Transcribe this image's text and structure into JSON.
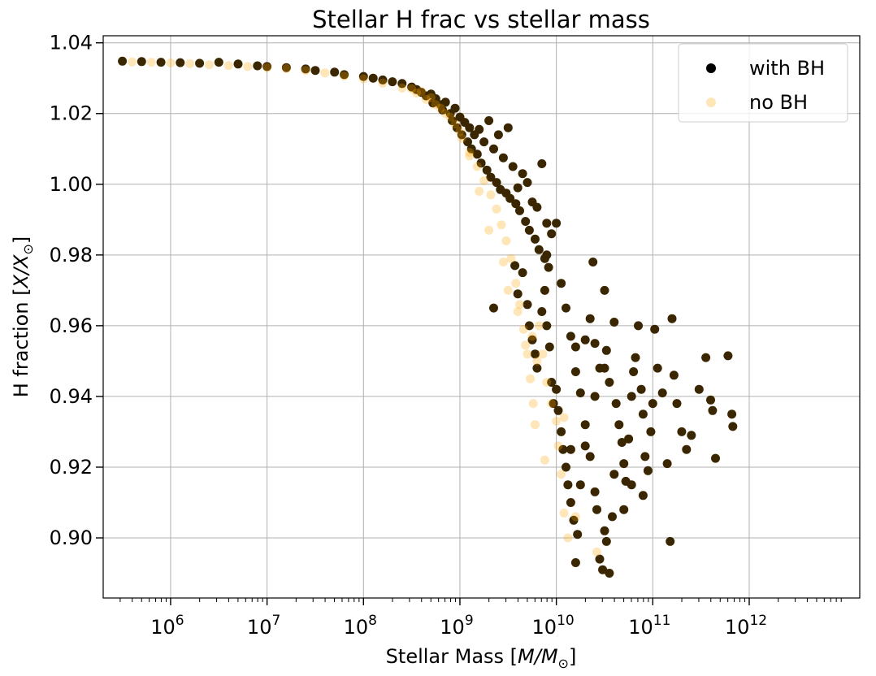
{
  "chart_data": {
    "type": "scatter",
    "title": "Stellar H frac vs stellar mass",
    "xlabel": {
      "text": "Stellar Mass [",
      "math": "M/M",
      "sub": "⊙",
      "end": "]"
    },
    "ylabel": {
      "text": "H fraction [",
      "math": "X/X",
      "sub": "⊙",
      "end": "]"
    },
    "xscale": "log",
    "xlim": [
      200000,
      14000000000000
    ],
    "ylim": [
      0.883,
      1.042
    ],
    "grid": true,
    "legend_position": "top-right",
    "x_ticks": [
      {
        "value": 1000000,
        "base": "10",
        "exp": "6"
      },
      {
        "value": 10000000,
        "base": "10",
        "exp": "7"
      },
      {
        "value": 100000000,
        "base": "10",
        "exp": "8"
      },
      {
        "value": 1000000000,
        "base": "10",
        "exp": "9"
      },
      {
        "value": 10000000000,
        "base": "10",
        "exp": "10"
      },
      {
        "value": 100000000000,
        "base": "10",
        "exp": "11"
      },
      {
        "value": 1000000000000,
        "base": "10",
        "exp": "12"
      }
    ],
    "y_ticks": [
      {
        "value": 0.9,
        "label": "0.90"
      },
      {
        "value": 0.92,
        "label": "0.92"
      },
      {
        "value": 0.94,
        "label": "0.94"
      },
      {
        "value": 0.96,
        "label": "0.96"
      },
      {
        "value": 0.98,
        "label": "0.98"
      },
      {
        "value": 1.0,
        "label": "1.00"
      },
      {
        "value": 1.02,
        "label": "1.02"
      },
      {
        "value": 1.04,
        "label": "1.04"
      }
    ],
    "series": [
      {
        "name": "with BH",
        "color": "#000000",
        "alpha": 1.0,
        "points": [
          [
            5.5,
            1.0348
          ],
          [
            5.7,
            1.0347
          ],
          [
            5.9,
            1.0345
          ],
          [
            6.1,
            1.0344
          ],
          [
            6.3,
            1.0342
          ],
          [
            6.5,
            1.0345
          ],
          [
            6.7,
            1.034
          ],
          [
            6.9,
            1.0335
          ],
          [
            7.0,
            1.0333
          ],
          [
            7.2,
            1.033
          ],
          [
            7.4,
            1.0326
          ],
          [
            7.5,
            1.0322
          ],
          [
            7.7,
            1.0317
          ],
          [
            7.8,
            1.031
          ],
          [
            8.0,
            1.0305
          ],
          [
            8.1,
            1.03
          ],
          [
            8.2,
            1.0295
          ],
          [
            8.3,
            1.029
          ],
          [
            8.4,
            1.0285
          ],
          [
            8.5,
            1.0275
          ],
          [
            8.55,
            1.0268
          ],
          [
            8.6,
            1.026
          ],
          [
            8.65,
            1.025
          ],
          [
            8.7,
            1.0255
          ],
          [
            8.72,
            1.023
          ],
          [
            8.75,
            1.0242
          ],
          [
            8.8,
            1.0225
          ],
          [
            8.82,
            1.021
          ],
          [
            8.85,
            1.0232
          ],
          [
            8.9,
            1.02
          ],
          [
            8.92,
            1.018
          ],
          [
            8.95,
            1.0215
          ],
          [
            8.97,
            1.016
          ],
          [
            9.0,
            1.019
          ],
          [
            9.02,
            1.014
          ],
          [
            9.05,
            1.0175
          ],
          [
            9.08,
            1.012
          ],
          [
            9.1,
            1.016
          ],
          [
            9.12,
            1.01
          ],
          [
            9.15,
            1.014
          ],
          [
            9.18,
            1.0085
          ],
          [
            9.2,
            1.0155
          ],
          [
            9.22,
            1.006
          ],
          [
            9.25,
            1.012
          ],
          [
            9.28,
            1.004
          ],
          [
            9.3,
            1.018
          ],
          [
            9.32,
            1.002
          ],
          [
            9.35,
            1.01
          ],
          [
            9.38,
            1.0005
          ],
          [
            9.4,
            1.014
          ],
          [
            9.42,
            0.9985
          ],
          [
            9.45,
            1.0075
          ],
          [
            9.48,
            0.9975
          ],
          [
            9.5,
            1.016
          ],
          [
            9.52,
            0.996
          ],
          [
            9.55,
            1.005
          ],
          [
            9.58,
            0.9945
          ],
          [
            9.6,
            0.999
          ],
          [
            9.62,
            0.9925
          ],
          [
            9.65,
            1.003
          ],
          [
            9.68,
            0.9895
          ],
          [
            9.7,
            1.0005
          ],
          [
            9.72,
            0.987
          ],
          [
            9.75,
            0.995
          ],
          [
            9.78,
            0.9845
          ],
          [
            9.8,
            0.9935
          ],
          [
            9.82,
            0.9815
          ],
          [
            9.85,
            1.0058
          ],
          [
            9.88,
            0.979
          ],
          [
            9.9,
            0.989
          ],
          [
            9.92,
            0.9765
          ],
          [
            9.95,
            0.986
          ],
          [
            9.57,
            0.977
          ],
          [
            9.6,
            0.969
          ],
          [
            9.65,
            0.975
          ],
          [
            9.7,
            0.966
          ],
          [
            9.72,
            0.96
          ],
          [
            9.75,
            0.956
          ],
          [
            9.78,
            0.952
          ],
          [
            9.8,
            0.948
          ],
          [
            9.85,
            0.964
          ],
          [
            9.88,
            0.97
          ],
          [
            9.9,
            0.96
          ],
          [
            9.93,
            0.954
          ],
          [
            9.95,
            0.944
          ],
          [
            9.97,
            0.938
          ],
          [
            10.0,
            0.942
          ],
          [
            10.02,
            0.936
          ],
          [
            10.05,
            0.93
          ],
          [
            10.07,
            0.925
          ],
          [
            10.1,
            0.92
          ],
          [
            10.12,
            0.915
          ],
          [
            10.15,
            0.91
          ],
          [
            10.18,
            0.905
          ],
          [
            10.2,
            0.893
          ],
          [
            10.22,
            0.901
          ],
          [
            10.0,
            0.989
          ],
          [
            10.05,
            0.972
          ],
          [
            10.1,
            0.965
          ],
          [
            10.15,
            0.957
          ],
          [
            10.2,
            0.947
          ],
          [
            10.25,
            0.941
          ],
          [
            10.3,
            0.932
          ],
          [
            10.35,
            0.923
          ],
          [
            10.4,
            0.913
          ],
          [
            10.42,
            0.908
          ],
          [
            10.45,
            0.894
          ],
          [
            10.48,
            0.891
          ],
          [
            10.5,
            0.902
          ],
          [
            10.52,
            0.899
          ],
          [
            10.55,
            0.89
          ],
          [
            10.58,
            0.906
          ],
          [
            10.3,
            0.956
          ],
          [
            10.35,
            0.962
          ],
          [
            10.38,
            0.978
          ],
          [
            10.4,
            0.955
          ],
          [
            10.45,
            0.948
          ],
          [
            10.5,
            0.97
          ],
          [
            10.52,
            0.953
          ],
          [
            10.55,
            0.944
          ],
          [
            10.6,
            0.961
          ],
          [
            10.62,
            0.938
          ],
          [
            10.65,
            0.932
          ],
          [
            10.68,
            0.927
          ],
          [
            10.7,
            0.921
          ],
          [
            10.72,
            0.916
          ],
          [
            10.75,
            0.928
          ],
          [
            10.78,
            0.94
          ],
          [
            10.8,
            0.947
          ],
          [
            10.82,
            0.951
          ],
          [
            10.85,
            0.96
          ],
          [
            10.88,
            0.942
          ],
          [
            10.9,
            0.935
          ],
          [
            10.92,
            0.923
          ],
          [
            10.95,
            0.919
          ],
          [
            10.98,
            0.93
          ],
          [
            11.0,
            0.938
          ],
          [
            11.02,
            0.959
          ],
          [
            11.05,
            0.948
          ],
          [
            11.1,
            0.941
          ],
          [
            11.15,
            0.921
          ],
          [
            11.18,
            0.899
          ],
          [
            11.2,
            0.962
          ],
          [
            11.22,
            0.946
          ],
          [
            11.25,
            0.938
          ],
          [
            11.3,
            0.93
          ],
          [
            11.35,
            0.925
          ],
          [
            11.4,
            0.929
          ],
          [
            11.48,
            0.942
          ],
          [
            11.55,
            0.951
          ],
          [
            11.6,
            0.939
          ],
          [
            11.62,
            0.936
          ],
          [
            11.65,
            0.9225
          ],
          [
            11.78,
            0.9515
          ],
          [
            11.82,
            0.935
          ],
          [
            11.83,
            0.9315
          ],
          [
            9.35,
            0.965
          ],
          [
            9.9,
            0.98
          ],
          [
            10.2,
            0.954
          ],
          [
            10.6,
            0.918
          ],
          [
            10.7,
            0.908
          ],
          [
            10.78,
            0.915
          ],
          [
            10.9,
            0.912
          ],
          [
            10.3,
            0.926
          ],
          [
            10.15,
            0.925
          ],
          [
            10.25,
            0.915
          ],
          [
            10.4,
            0.94
          ],
          [
            10.5,
            0.948
          ]
        ]
      },
      {
        "name": "no BH",
        "color": "#FFA500",
        "alpha": 0.28,
        "points": [
          [
            5.6,
            1.0346
          ],
          [
            5.8,
            1.0345
          ],
          [
            6.0,
            1.0343
          ],
          [
            6.2,
            1.0341
          ],
          [
            6.4,
            1.0338
          ],
          [
            6.6,
            1.0336
          ],
          [
            6.8,
            1.0333
          ],
          [
            7.0,
            1.033
          ],
          [
            7.2,
            1.0327
          ],
          [
            7.4,
            1.0322
          ],
          [
            7.6,
            1.0315
          ],
          [
            7.8,
            1.0306
          ],
          [
            8.0,
            1.0298
          ],
          [
            8.2,
            1.0286
          ],
          [
            8.4,
            1.0272
          ],
          [
            8.55,
            1.0258
          ],
          [
            8.65,
            1.024
          ],
          [
            8.75,
            1.0225
          ],
          [
            8.85,
            1.02
          ],
          [
            8.95,
            1.017
          ],
          [
            9.02,
            1.013
          ],
          [
            9.1,
            1.009
          ],
          [
            9.18,
            1.005
          ],
          [
            9.25,
            1.001
          ],
          [
            9.32,
            0.997
          ],
          [
            9.38,
            0.993
          ],
          [
            9.43,
            0.9885
          ],
          [
            9.48,
            0.984
          ],
          [
            9.53,
            0.979
          ],
          [
            9.58,
            0.972
          ],
          [
            9.62,
            0.966
          ],
          [
            9.66,
            0.959
          ],
          [
            9.7,
            0.952
          ],
          [
            9.73,
            0.945
          ],
          [
            9.76,
            0.938
          ],
          [
            9.78,
            0.932
          ],
          [
            9.82,
            0.96
          ],
          [
            9.86,
            0.952
          ],
          [
            9.9,
            0.944
          ],
          [
            9.95,
            0.938
          ],
          [
            10.0,
            0.933
          ],
          [
            10.02,
            0.926
          ],
          [
            10.05,
            0.918
          ],
          [
            10.08,
            0.907
          ],
          [
            10.12,
            0.9
          ],
          [
            10.42,
            0.896
          ],
          [
            9.45,
            0.978
          ],
          [
            9.6,
            0.964
          ],
          [
            9.75,
            0.957
          ],
          [
            9.88,
            0.922
          ],
          [
            10.08,
            0.934
          ],
          [
            10.2,
            0.906
          ],
          [
            9.5,
            0.97
          ],
          [
            9.68,
            0.9545
          ],
          [
            9.8,
            0.95
          ],
          [
            9.3,
            0.987
          ],
          [
            9.2,
            0.998
          ],
          [
            9.1,
            1.008
          ],
          [
            9.0,
            1.015
          ],
          [
            8.9,
            1.019
          ],
          [
            8.8,
            1.0215
          ],
          [
            8.7,
            1.0245
          ],
          [
            8.6,
            1.0262
          ],
          [
            8.5,
            1.027
          ]
        ]
      }
    ]
  }
}
